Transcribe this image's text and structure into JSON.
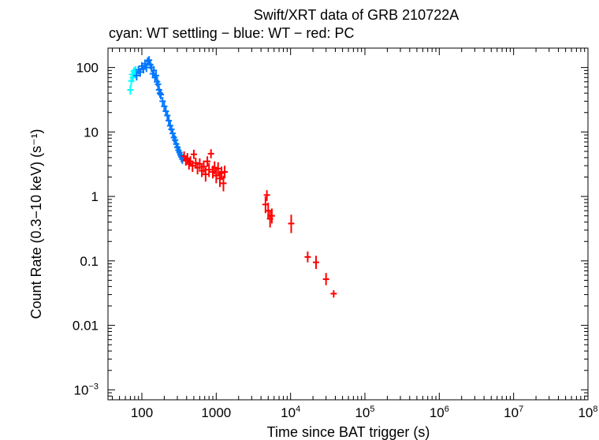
{
  "chart_data": {
    "type": "scatter",
    "title": "Swift/XRT data of GRB 210722A",
    "subtitle": "cyan: WT settling − blue: WT − red: PC",
    "xlabel": "Time since BAT trigger (s)",
    "ylabel": "Count Rate (0.3−10 keV) (s⁻¹)",
    "xscale": "log",
    "yscale": "log",
    "xlim": [
      35,
      100000000
    ],
    "ylim": [
      0.0007,
      200
    ],
    "x_ticks": [
      {
        "value": 100,
        "base": "100",
        "exp": ""
      },
      {
        "value": 1000,
        "base": "1000",
        "exp": ""
      },
      {
        "value": 10000,
        "base": "10",
        "exp": "4"
      },
      {
        "value": 100000,
        "base": "10",
        "exp": "5"
      },
      {
        "value": 1000000,
        "base": "10",
        "exp": "6"
      },
      {
        "value": 10000000,
        "base": "10",
        "exp": "7"
      },
      {
        "value": 100000000,
        "base": "10",
        "exp": "8"
      }
    ],
    "y_ticks": [
      {
        "value": 100,
        "base": "100",
        "exp": ""
      },
      {
        "value": 10,
        "base": "10",
        "exp": ""
      },
      {
        "value": 1,
        "base": "1",
        "exp": ""
      },
      {
        "value": 0.1,
        "base": "0.1",
        "exp": ""
      },
      {
        "value": 0.01,
        "base": "0.01",
        "exp": ""
      },
      {
        "value": 0.001,
        "base": "10",
        "exp": "−3"
      }
    ],
    "series": [
      {
        "name": "WT settling",
        "color": "#00ffff",
        "points": [
          [
            70,
            45,
            38,
            53
          ],
          [
            72,
            62,
            52,
            73
          ],
          [
            74,
            78,
            66,
            90
          ],
          [
            76,
            70,
            59,
            82
          ],
          [
            78,
            88,
            75,
            101
          ],
          [
            80,
            82,
            70,
            95
          ],
          [
            82,
            92,
            80,
            105
          ]
        ]
      },
      {
        "name": "WT",
        "color": "#0077ff",
        "points": [
          [
            85,
            75,
            63,
            88
          ],
          [
            90,
            92,
            78,
            106
          ],
          [
            95,
            85,
            72,
            99
          ],
          [
            100,
            105,
            90,
            121
          ],
          [
            105,
            95,
            81,
            110
          ],
          [
            110,
            115,
            98,
            133
          ],
          [
            115,
            100,
            85,
            116
          ],
          [
            120,
            125,
            106,
            144
          ],
          [
            125,
            130,
            110,
            150
          ],
          [
            130,
            110,
            94,
            127
          ],
          [
            135,
            100,
            85,
            116
          ],
          [
            140,
            80,
            68,
            93
          ],
          [
            145,
            90,
            76,
            105
          ],
          [
            150,
            70,
            59,
            82
          ],
          [
            155,
            75,
            63,
            88
          ],
          [
            160,
            60,
            51,
            70
          ],
          [
            165,
            55,
            46,
            65
          ],
          [
            170,
            45,
            38,
            53
          ],
          [
            175,
            40,
            34,
            47
          ],
          [
            180,
            38,
            32,
            45
          ],
          [
            190,
            30,
            25,
            35
          ],
          [
            200,
            25,
            21,
            29.5
          ],
          [
            210,
            21,
            17.8,
            24.5
          ],
          [
            220,
            18,
            15.2,
            21
          ],
          [
            230,
            15,
            12.7,
            17.5
          ],
          [
            240,
            12.5,
            10.5,
            14.7
          ],
          [
            250,
            11,
            9.3,
            12.9
          ],
          [
            260,
            9.5,
            8,
            11.2
          ],
          [
            270,
            8.2,
            6.9,
            9.6
          ],
          [
            280,
            7.5,
            6.3,
            8.8
          ],
          [
            290,
            6.5,
            5.5,
            7.6
          ],
          [
            300,
            5.8,
            4.9,
            6.8
          ],
          [
            310,
            5.2,
            4.4,
            6.1
          ],
          [
            320,
            4.8,
            4,
            5.7
          ],
          [
            330,
            4.4,
            3.7,
            5.2
          ],
          [
            340,
            4.1,
            3.4,
            4.9
          ],
          [
            350,
            3.8,
            3.2,
            4.5
          ]
        ]
      },
      {
        "name": "PC",
        "color": "#ff0000",
        "points": [
          [
            370,
            4.2,
            3.5,
            5
          ],
          [
            390,
            3.6,
            3,
            4.3
          ],
          [
            410,
            3.9,
            3.2,
            4.7
          ],
          [
            430,
            3.2,
            2.6,
            3.9
          ],
          [
            450,
            3.5,
            2.9,
            4.2
          ],
          [
            480,
            3,
            2.4,
            3.6
          ],
          [
            500,
            4.5,
            3.8,
            5.3
          ],
          [
            530,
            3.3,
            2.7,
            4
          ],
          [
            560,
            2.8,
            2.2,
            3.4
          ],
          [
            600,
            3.2,
            2.6,
            3.9
          ],
          [
            640,
            2.5,
            2,
            3.1
          ],
          [
            680,
            2.9,
            2.3,
            3.6
          ],
          [
            720,
            2.2,
            1.7,
            2.8
          ],
          [
            760,
            3.5,
            2.9,
            4.2
          ],
          [
            800,
            2.6,
            2,
            3.3
          ],
          [
            850,
            4.6,
            3.9,
            5.4
          ],
          [
            900,
            2.4,
            1.9,
            3
          ],
          [
            950,
            2.8,
            2.2,
            3.5
          ],
          [
            1000,
            2.1,
            1.6,
            2.7
          ],
          [
            1060,
            2.7,
            2.1,
            3.4
          ],
          [
            1120,
            1.9,
            1.4,
            2.5
          ],
          [
            1180,
            2.3,
            1.8,
            2.9
          ],
          [
            1250,
            1.6,
            1.2,
            2.1
          ],
          [
            1300,
            2.4,
            1.9,
            3
          ],
          [
            4600,
            0.75,
            0.55,
            1
          ],
          [
            4800,
            1.05,
            0.85,
            1.25
          ],
          [
            5000,
            0.6,
            0.45,
            0.8
          ],
          [
            5300,
            0.45,
            0.33,
            0.6
          ],
          [
            5600,
            0.5,
            0.38,
            0.65
          ],
          [
            10200,
            0.38,
            0.27,
            0.52
          ],
          [
            17000,
            0.115,
            0.095,
            0.14
          ],
          [
            22000,
            0.095,
            0.075,
            0.12
          ],
          [
            30000,
            0.052,
            0.042,
            0.065
          ],
          [
            38000,
            0.031,
            0.027,
            0.035
          ]
        ]
      }
    ]
  }
}
